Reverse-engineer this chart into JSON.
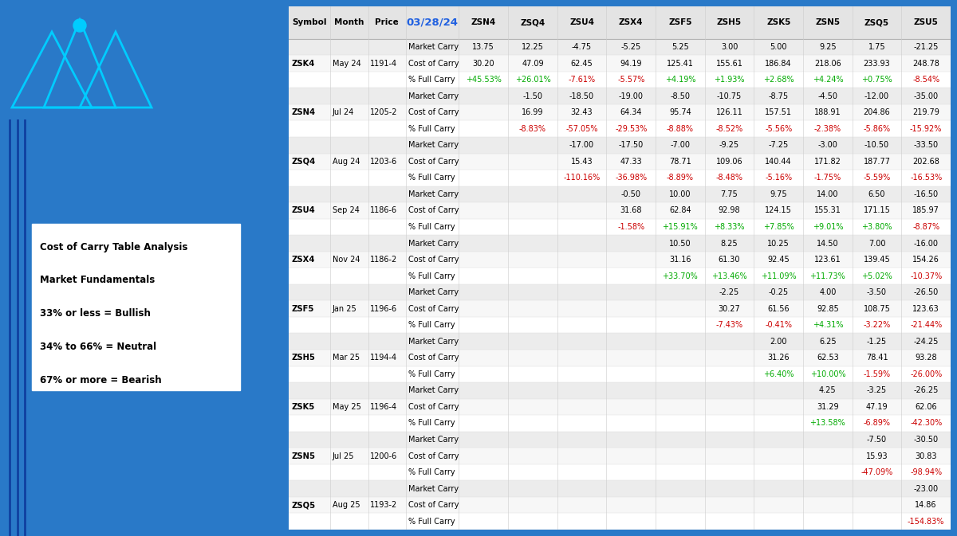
{
  "bg_color": "#2979c8",
  "logo_bg": "#000000",
  "logo_text_color": "#2979c8",
  "logo_accent": "#00ccff",
  "header_date_color": "#2060e0",
  "green_color": "#00aa00",
  "red_color": "#cc0000",
  "left_text_lines": [
    "Cost of Carry Table Analysis",
    "Market Fundamentals",
    "33% or less = Bullish",
    "34% to 66% = Neutral",
    "67% or more = Bearish"
  ],
  "columns": [
    "Symbol",
    "Month",
    "Price",
    "03/28/24",
    "ZSN4",
    "ZSQ4",
    "ZSU4",
    "ZSX4",
    "ZSF5",
    "ZSH5",
    "ZSK5",
    "ZSN5",
    "ZSQ5",
    "ZSU5"
  ],
  "rows": [
    [
      "",
      "",
      "",
      "Market Carry",
      "13.75",
      "12.25",
      "-4.75",
      "-5.25",
      "5.25",
      "3.00",
      "5.00",
      "9.25",
      "1.75",
      "-21.25"
    ],
    [
      "ZSK4",
      "May 24",
      "1191-4",
      "Cost of Carry",
      "30.20",
      "47.09",
      "62.45",
      "94.19",
      "125.41",
      "155.61",
      "186.84",
      "218.06",
      "233.93",
      "248.78"
    ],
    [
      "",
      "",
      "",
      "% Full Carry",
      "+45.53%",
      "+26.01%",
      "-7.61%",
      "-5.57%",
      "+4.19%",
      "+1.93%",
      "+2.68%",
      "+4.24%",
      "+0.75%",
      "-8.54%"
    ],
    [
      "",
      "",
      "",
      "Market Carry",
      "",
      "-1.50",
      "-18.50",
      "-19.00",
      "-8.50",
      "-10.75",
      "-8.75",
      "-4.50",
      "-12.00",
      "-35.00"
    ],
    [
      "ZSN4",
      "Jul 24",
      "1205-2",
      "Cost of Carry",
      "",
      "16.99",
      "32.43",
      "64.34",
      "95.74",
      "126.11",
      "157.51",
      "188.91",
      "204.86",
      "219.79"
    ],
    [
      "",
      "",
      "",
      "% Full Carry",
      "",
      "-8.83%",
      "-57.05%",
      "-29.53%",
      "-8.88%",
      "-8.52%",
      "-5.56%",
      "-2.38%",
      "-5.86%",
      "-15.92%"
    ],
    [
      "",
      "",
      "",
      "Market Carry",
      "",
      "",
      "-17.00",
      "-17.50",
      "-7.00",
      "-9.25",
      "-7.25",
      "-3.00",
      "-10.50",
      "-33.50"
    ],
    [
      "ZSQ4",
      "Aug 24",
      "1203-6",
      "Cost of Carry",
      "",
      "",
      "15.43",
      "47.33",
      "78.71",
      "109.06",
      "140.44",
      "171.82",
      "187.77",
      "202.68"
    ],
    [
      "",
      "",
      "",
      "% Full Carry",
      "",
      "",
      "-110.16%",
      "-36.98%",
      "-8.89%",
      "-8.48%",
      "-5.16%",
      "-1.75%",
      "-5.59%",
      "-16.53%"
    ],
    [
      "",
      "",
      "",
      "Market Carry",
      "",
      "",
      "",
      "-0.50",
      "10.00",
      "7.75",
      "9.75",
      "14.00",
      "6.50",
      "-16.50"
    ],
    [
      "ZSU4",
      "Sep 24",
      "1186-6",
      "Cost of Carry",
      "",
      "",
      "",
      "31.68",
      "62.84",
      "92.98",
      "124.15",
      "155.31",
      "171.15",
      "185.97"
    ],
    [
      "",
      "",
      "",
      "% Full Carry",
      "",
      "",
      "",
      "-1.58%",
      "+15.91%",
      "+8.33%",
      "+7.85%",
      "+9.01%",
      "+3.80%",
      "-8.87%"
    ],
    [
      "",
      "",
      "",
      "Market Carry",
      "",
      "",
      "",
      "",
      "10.50",
      "8.25",
      "10.25",
      "14.50",
      "7.00",
      "-16.00"
    ],
    [
      "ZSX4",
      "Nov 24",
      "1186-2",
      "Cost of Carry",
      "",
      "",
      "",
      "",
      "31.16",
      "61.30",
      "92.45",
      "123.61",
      "139.45",
      "154.26"
    ],
    [
      "",
      "",
      "",
      "% Full Carry",
      "",
      "",
      "",
      "",
      "+33.70%",
      "+13.46%",
      "+11.09%",
      "+11.73%",
      "+5.02%",
      "-10.37%"
    ],
    [
      "",
      "",
      "",
      "Market Carry",
      "",
      "",
      "",
      "",
      "",
      "-2.25",
      "-0.25",
      "4.00",
      "-3.50",
      "-26.50"
    ],
    [
      "ZSF5",
      "Jan 25",
      "1196-6",
      "Cost of Carry",
      "",
      "",
      "",
      "",
      "",
      "30.27",
      "61.56",
      "92.85",
      "108.75",
      "123.63"
    ],
    [
      "",
      "",
      "",
      "% Full Carry",
      "",
      "",
      "",
      "",
      "",
      "-7.43%",
      "-0.41%",
      "+4.31%",
      "-3.22%",
      "-21.44%"
    ],
    [
      "",
      "",
      "",
      "Market Carry",
      "",
      "",
      "",
      "",
      "",
      "",
      "2.00",
      "6.25",
      "-1.25",
      "-24.25"
    ],
    [
      "ZSH5",
      "Mar 25",
      "1194-4",
      "Cost of Carry",
      "",
      "",
      "",
      "",
      "",
      "",
      "31.26",
      "62.53",
      "78.41",
      "93.28"
    ],
    [
      "",
      "",
      "",
      "% Full Carry",
      "",
      "",
      "",
      "",
      "",
      "",
      "+6.40%",
      "+10.00%",
      "-1.59%",
      "-26.00%"
    ],
    [
      "",
      "",
      "",
      "Market Carry",
      "",
      "",
      "",
      "",
      "",
      "",
      "",
      "4.25",
      "-3.25",
      "-26.25"
    ],
    [
      "ZSK5",
      "May 25",
      "1196-4",
      "Cost of Carry",
      "",
      "",
      "",
      "",
      "",
      "",
      "",
      "31.29",
      "47.19",
      "62.06"
    ],
    [
      "",
      "",
      "",
      "% Full Carry",
      "",
      "",
      "",
      "",
      "",
      "",
      "",
      "+13.58%",
      "-6.89%",
      "-42.30%"
    ],
    [
      "",
      "",
      "",
      "Market Carry",
      "",
      "",
      "",
      "",
      "",
      "",
      "",
      "",
      "-7.50",
      "-30.50"
    ],
    [
      "ZSN5",
      "Jul 25",
      "1200-6",
      "Cost of Carry",
      "",
      "",
      "",
      "",
      "",
      "",
      "",
      "",
      "15.93",
      "30.83"
    ],
    [
      "",
      "",
      "",
      "% Full Carry",
      "",
      "",
      "",
      "",
      "",
      "",
      "",
      "",
      "-47.09%",
      "-98.94%"
    ],
    [
      "",
      "",
      "",
      "Market Carry",
      "",
      "",
      "",
      "",
      "",
      "",
      "",
      "",
      "",
      "-23.00"
    ],
    [
      "ZSQ5",
      "Aug 25",
      "1193-2",
      "Cost of Carry",
      "",
      "",
      "",
      "",
      "",
      "",
      "",
      "",
      "",
      "14.86"
    ],
    [
      "",
      "",
      "",
      "% Full Carry",
      "",
      "",
      "",
      "",
      "",
      "",
      "",
      "",
      "",
      "-154.83%"
    ]
  ]
}
